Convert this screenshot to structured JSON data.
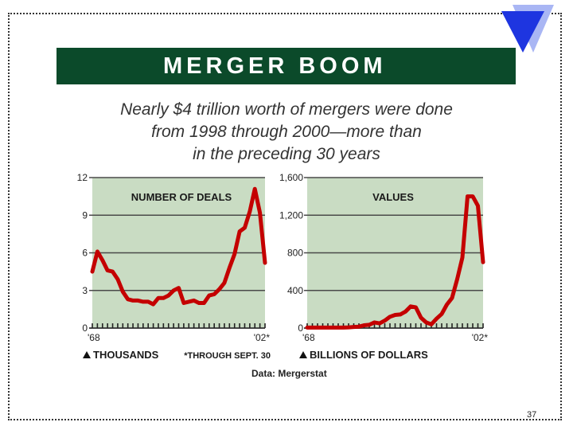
{
  "banner": {
    "title": "MERGER BOOM"
  },
  "subtitle": {
    "line1": "Nearly $4 trillion worth of mergers were done",
    "line2": "from 1998 through 2000—more than",
    "line3": "in the preceding 30 years"
  },
  "colors": {
    "banner": "#0b4a2a",
    "plot_bg": "#c9dcc3",
    "line": "#c40000",
    "triangle": "#1e35e0",
    "triangle_shadow": "#a9b6f4"
  },
  "source": "Data: Mergerstat",
  "page_number": "37",
  "chart_data": [
    {
      "type": "line",
      "title": "NUMBER OF DEALS",
      "unit_label": "THOUSANDS",
      "footnote": "*THROUGH SEPT. 30",
      "y_ticks": [
        "12",
        "9",
        "6",
        "3",
        "0"
      ],
      "ylim": [
        0,
        12
      ],
      "x_labels": [
        "'68",
        "'02*"
      ],
      "x": [
        1968,
        1969,
        1970,
        1971,
        1972,
        1973,
        1974,
        1975,
        1976,
        1977,
        1978,
        1979,
        1980,
        1981,
        1982,
        1983,
        1984,
        1985,
        1986,
        1987,
        1988,
        1989,
        1990,
        1991,
        1992,
        1993,
        1994,
        1995,
        1996,
        1997,
        1998,
        1999,
        2000,
        2001,
        2002
      ],
      "values": [
        4.5,
        6.1,
        5.4,
        4.6,
        4.5,
        3.9,
        2.9,
        2.3,
        2.2,
        2.2,
        2.1,
        2.1,
        1.9,
        2.4,
        2.4,
        2.6,
        3.0,
        3.2,
        2.0,
        2.1,
        2.2,
        2.0,
        2.0,
        2.6,
        2.7,
        3.1,
        3.6,
        4.8,
        5.9,
        7.7,
        8.0,
        9.3,
        11.1,
        9.2,
        5.2
      ]
    },
    {
      "type": "line",
      "title": "VALUES",
      "unit_label": "BILLIONS OF DOLLARS",
      "y_ticks": [
        "1,600",
        "1,200",
        "800",
        "400",
        "0"
      ],
      "ylim": [
        0,
        1600
      ],
      "x_labels": [
        "'68",
        "'02*"
      ],
      "x": [
        1968,
        1969,
        1970,
        1971,
        1972,
        1973,
        1974,
        1975,
        1976,
        1977,
        1978,
        1979,
        1980,
        1981,
        1982,
        1983,
        1984,
        1985,
        1986,
        1987,
        1988,
        1989,
        1990,
        1991,
        1992,
        1993,
        1994,
        1995,
        1996,
        1997,
        1998,
        1999,
        2000,
        2001,
        2002
      ],
      "values": [
        5,
        5,
        5,
        5,
        5,
        5,
        5,
        5,
        8,
        12,
        15,
        30,
        35,
        60,
        50,
        80,
        120,
        140,
        145,
        175,
        230,
        220,
        110,
        60,
        40,
        100,
        150,
        250,
        320,
        520,
        750,
        1400,
        1400,
        1300,
        700
      ]
    }
  ]
}
